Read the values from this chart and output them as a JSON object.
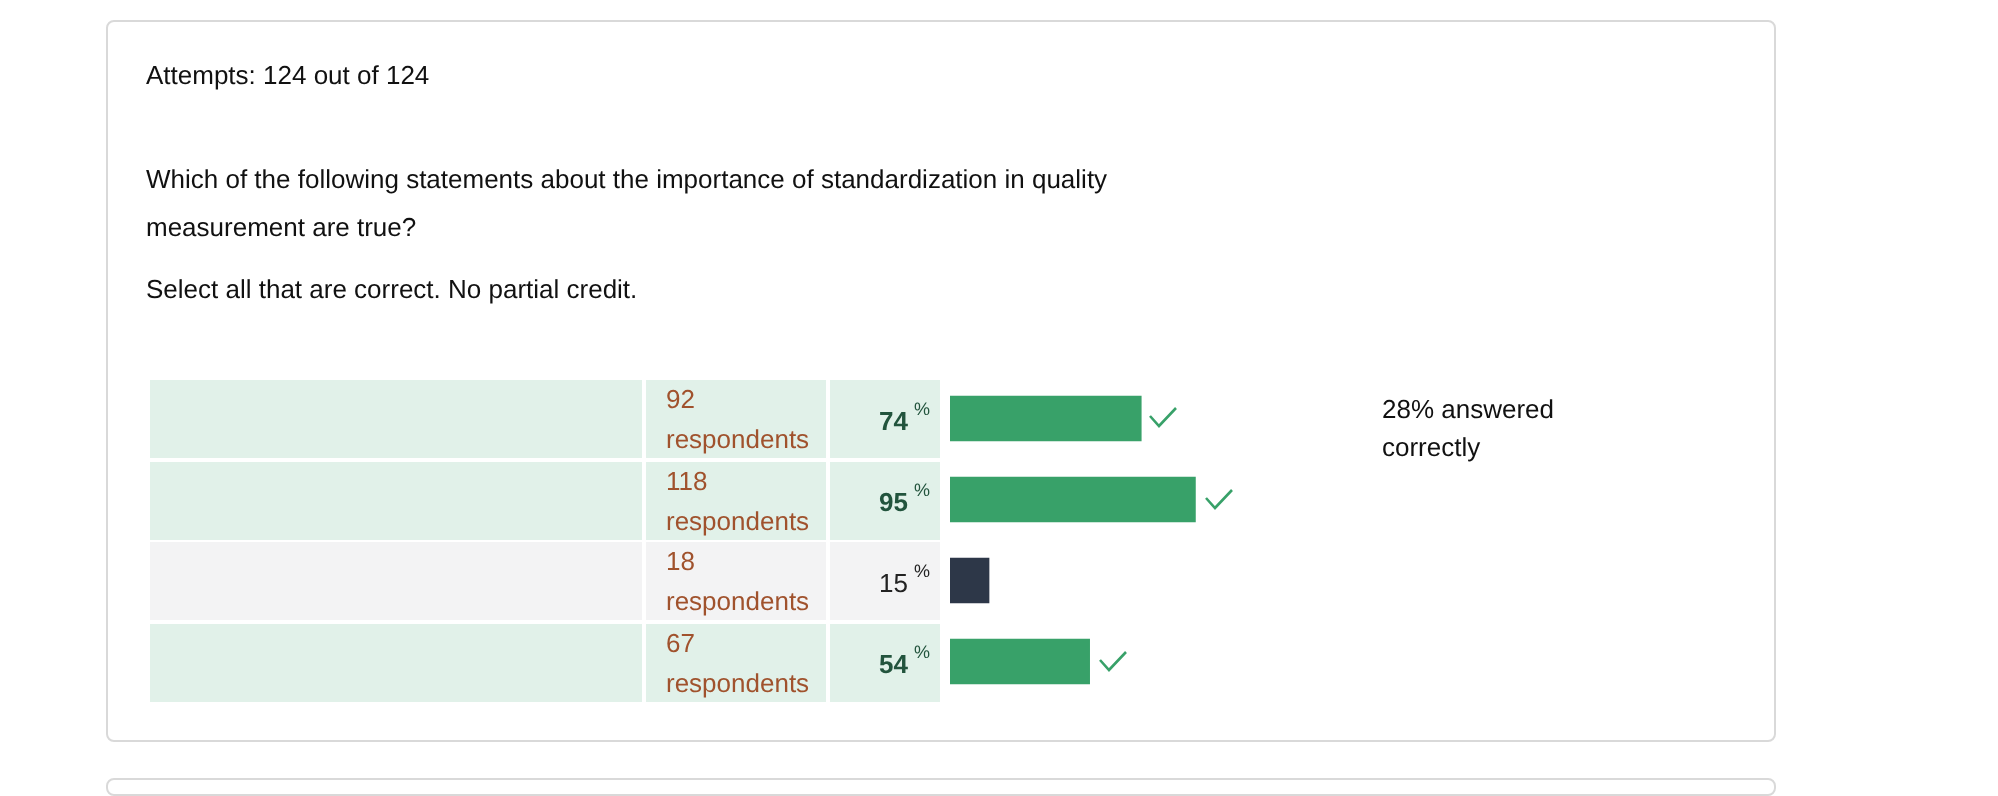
{
  "chart_data": {
    "type": "bar",
    "orientation": "horizontal",
    "title": "Attempts: 124 out of 124",
    "subtitle": "Which of the following statements about the importance of standardization in quality measurement are true?",
    "categories": [
      null,
      null,
      null,
      null
    ],
    "values": [
      74,
      95,
      15,
      54
    ],
    "colors": [
      "#38a169",
      "#38a169",
      "#2d3748",
      "#38a169"
    ],
    "value_labels": [
      "74 %",
      "95 %",
      "15 %",
      "54 %"
    ],
    "legend": false,
    "annotations": [
      "Select all that are correct. No partial credit.",
      "92 respondents",
      "118 respondents",
      "18 respondents",
      "67 respondents",
      "28% answered correctly"
    ]
  }
}
